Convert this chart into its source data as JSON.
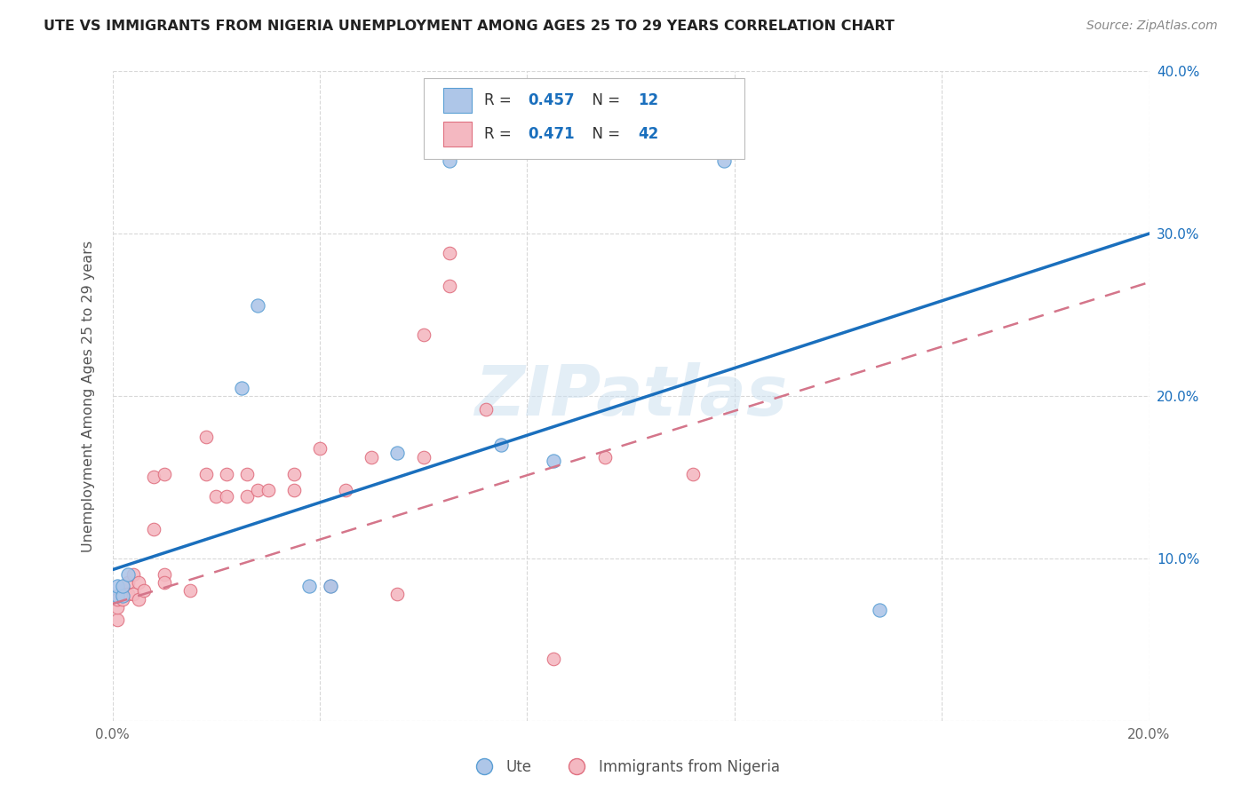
{
  "title": "UTE VS IMMIGRANTS FROM NIGERIA UNEMPLOYMENT AMONG AGES 25 TO 29 YEARS CORRELATION CHART",
  "source": "Source: ZipAtlas.com",
  "ylabel": "Unemployment Among Ages 25 to 29 years",
  "xmin": 0.0,
  "xmax": 0.2,
  "ymin": 0.0,
  "ymax": 0.4,
  "xticks": [
    0.0,
    0.04,
    0.08,
    0.12,
    0.16,
    0.2
  ],
  "yticks": [
    0.0,
    0.1,
    0.2,
    0.3,
    0.4
  ],
  "xtick_labels": [
    "0.0%",
    "",
    "",
    "",
    "",
    "20.0%"
  ],
  "ytick_labels_right": [
    "",
    "10.0%",
    "20.0%",
    "30.0%",
    "40.0%"
  ],
  "ute_line_color": "#1a6fbd",
  "ute_line_y0": 0.093,
  "ute_line_y1": 0.3,
  "nigeria_line_color": "#d4758a",
  "nigeria_line_y0": 0.072,
  "nigeria_line_y1": 0.27,
  "watermark": "ZIPatlas",
  "background_color": "#ffffff",
  "grid_color": "#d8d8d8",
  "ute_dot_color": "#aec6e8",
  "ute_dot_edge_color": "#5a9fd4",
  "nigeria_dot_color": "#f4b8c1",
  "nigeria_dot_edge_color": "#e07080",
  "ute_points": [
    [
      0.001,
      0.077
    ],
    [
      0.001,
      0.083
    ],
    [
      0.002,
      0.077
    ],
    [
      0.002,
      0.083
    ],
    [
      0.003,
      0.09
    ],
    [
      0.025,
      0.205
    ],
    [
      0.028,
      0.256
    ],
    [
      0.038,
      0.083
    ],
    [
      0.042,
      0.083
    ],
    [
      0.055,
      0.165
    ],
    [
      0.065,
      0.345
    ],
    [
      0.075,
      0.17
    ],
    [
      0.085,
      0.16
    ],
    [
      0.118,
      0.345
    ],
    [
      0.148,
      0.068
    ]
  ],
  "nigeria_points": [
    [
      0.001,
      0.062
    ],
    [
      0.001,
      0.07
    ],
    [
      0.001,
      0.075
    ],
    [
      0.002,
      0.075
    ],
    [
      0.002,
      0.08
    ],
    [
      0.003,
      0.085
    ],
    [
      0.003,
      0.078
    ],
    [
      0.004,
      0.09
    ],
    [
      0.004,
      0.078
    ],
    [
      0.005,
      0.075
    ],
    [
      0.005,
      0.085
    ],
    [
      0.006,
      0.08
    ],
    [
      0.008,
      0.15
    ],
    [
      0.008,
      0.118
    ],
    [
      0.01,
      0.152
    ],
    [
      0.01,
      0.09
    ],
    [
      0.01,
      0.085
    ],
    [
      0.015,
      0.08
    ],
    [
      0.018,
      0.175
    ],
    [
      0.018,
      0.152
    ],
    [
      0.02,
      0.138
    ],
    [
      0.022,
      0.152
    ],
    [
      0.022,
      0.138
    ],
    [
      0.026,
      0.138
    ],
    [
      0.026,
      0.152
    ],
    [
      0.028,
      0.142
    ],
    [
      0.03,
      0.142
    ],
    [
      0.035,
      0.152
    ],
    [
      0.035,
      0.142
    ],
    [
      0.04,
      0.168
    ],
    [
      0.042,
      0.083
    ],
    [
      0.045,
      0.142
    ],
    [
      0.05,
      0.162
    ],
    [
      0.055,
      0.078
    ],
    [
      0.06,
      0.238
    ],
    [
      0.06,
      0.162
    ],
    [
      0.065,
      0.288
    ],
    [
      0.065,
      0.268
    ],
    [
      0.072,
      0.192
    ],
    [
      0.085,
      0.038
    ],
    [
      0.095,
      0.162
    ],
    [
      0.112,
      0.152
    ]
  ]
}
